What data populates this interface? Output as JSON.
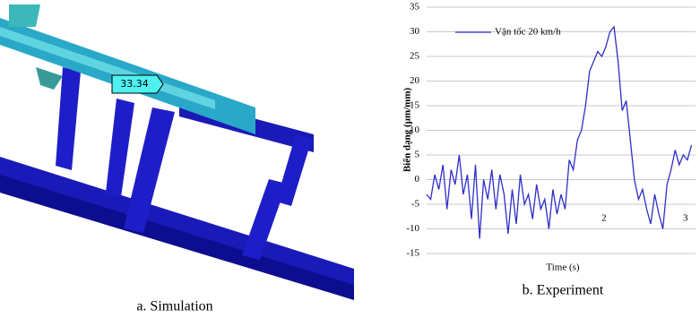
{
  "simulation": {
    "callout": "33.34",
    "caption": "a. Simulation"
  },
  "chart_data": {
    "type": "line",
    "caption": "b. Experiment",
    "x_label": "Time (s)",
    "y_label": "Biến dạng (µm/mm)",
    "x": [
      0,
      0.05,
      0.1,
      0.15,
      0.2,
      0.25,
      0.3,
      0.35,
      0.4,
      0.45,
      0.5,
      0.55,
      0.6,
      0.65,
      0.7,
      0.75,
      0.8,
      0.85,
      0.9,
      0.95,
      1.0,
      1.05,
      1.1,
      1.15,
      1.2,
      1.25,
      1.3,
      1.35,
      1.4,
      1.45,
      1.5,
      1.55,
      1.6,
      1.65,
      1.7,
      1.75,
      1.8,
      1.85,
      1.9,
      1.95,
      2.0,
      2.05,
      2.1,
      2.15,
      2.2,
      2.25,
      2.3,
      2.35,
      2.4,
      2.45,
      2.5,
      2.55,
      2.6,
      2.65,
      2.7,
      2.75,
      2.8,
      2.85,
      2.9,
      2.95,
      3.0,
      3.05,
      3.1,
      3.15,
      3.2,
      3.25
    ],
    "series": [
      {
        "name": "Vận tốc 20 km/h",
        "color": "#2e2ec8",
        "values": [
          -3,
          -4,
          1,
          -2,
          3,
          -6,
          2,
          -1,
          5,
          -3,
          1,
          -8,
          3,
          -12,
          0,
          -4,
          2,
          -6,
          1,
          -3,
          -11,
          -2,
          -9,
          1,
          -5,
          -3,
          -8,
          -1,
          -6,
          -4,
          -10,
          -2,
          -7,
          -3,
          -6,
          4,
          2,
          8,
          10,
          15,
          22,
          24,
          26,
          25,
          27,
          30,
          31,
          24,
          14,
          16,
          8,
          0,
          -4,
          -2,
          -6,
          -9,
          -3,
          -7,
          -10,
          -1,
          2,
          6,
          3,
          5,
          4,
          7
        ]
      }
    ],
    "xlim": [
      0,
      3.3
    ],
    "xticks": [
      2,
      3
    ],
    "ylim": [
      -15,
      35
    ],
    "yticks": [
      -15,
      -10,
      -5,
      0,
      5,
      10,
      15,
      20,
      25,
      30,
      35
    ],
    "grid": true,
    "legend": "top-left"
  }
}
